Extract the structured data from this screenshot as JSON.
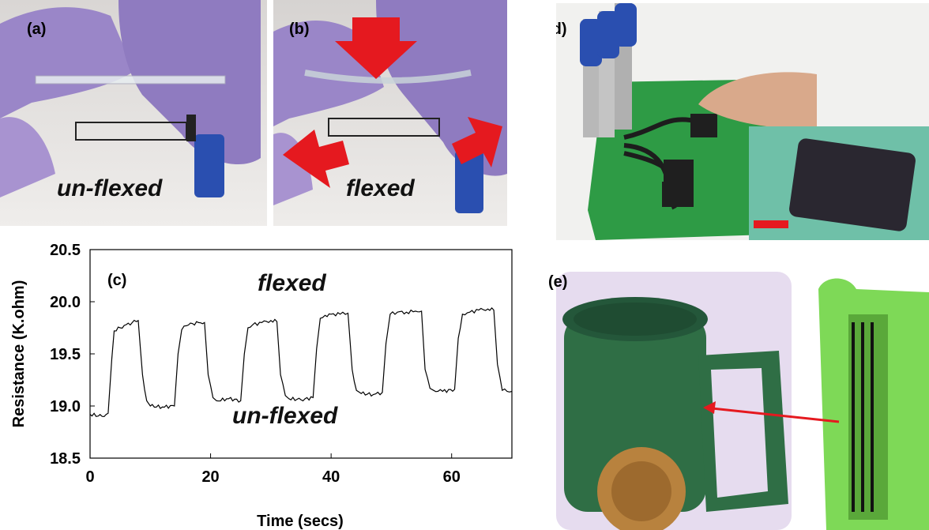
{
  "panels": {
    "a": {
      "label": "(a)",
      "caption": "un-flexed"
    },
    "b": {
      "label": "(b)",
      "caption": "flexed"
    },
    "c": {
      "label": "(c)",
      "annotation_top": "flexed",
      "annotation_bottom": "un-flexed"
    },
    "d": {
      "label": "(d)"
    },
    "e": {
      "label": "(e)"
    }
  },
  "colors": {
    "glove": "#9a86c8",
    "board": "#2e9b45",
    "mug": "#2f6e45",
    "highlight": "#7ed957",
    "arrow": "#e5191f",
    "connector": "#2a4fb0"
  },
  "chart_data": {
    "type": "line",
    "xlabel": "Time (secs)",
    "ylabel": "Resistance (K.ohm)",
    "xlim": [
      0,
      70
    ],
    "ylim": [
      18.5,
      20.5
    ],
    "x_ticks": [
      "0",
      "20",
      "40",
      "60"
    ],
    "y_ticks": [
      "18.5",
      "19.0",
      "19.5",
      "20.0",
      "20.5"
    ],
    "grid": false,
    "series": [
      {
        "x": [
          0,
          2,
          3,
          3.6,
          4,
          5,
          6,
          7,
          8,
          8.7,
          9.4,
          10,
          12,
          14,
          14.6,
          15.2,
          16,
          17,
          18,
          19,
          19.6,
          20.4,
          21,
          23,
          25,
          25.6,
          26.2,
          27,
          28.5,
          30,
          31,
          31.6,
          32.4,
          33,
          35,
          37,
          37.6,
          38.2,
          39,
          40,
          41.5,
          42.8,
          43.5,
          44.2,
          45,
          47,
          48.5,
          49.1,
          49.8,
          51,
          52.5,
          54,
          55,
          55.6,
          56.4,
          57,
          58.5,
          60.5,
          61.1,
          61.8,
          63,
          64.5,
          66,
          67,
          67.6,
          68.4,
          70
        ],
        "y": [
          18.92,
          18.9,
          18.93,
          19.45,
          19.72,
          19.75,
          19.78,
          19.8,
          19.82,
          19.3,
          19.05,
          19.0,
          18.99,
          19.0,
          19.5,
          19.73,
          19.77,
          19.79,
          19.8,
          19.8,
          19.3,
          19.08,
          19.05,
          19.07,
          19.05,
          19.5,
          19.75,
          19.78,
          19.8,
          19.82,
          19.81,
          19.3,
          19.1,
          19.07,
          19.06,
          19.08,
          19.55,
          19.84,
          19.87,
          19.88,
          19.88,
          19.89,
          19.35,
          19.15,
          19.12,
          19.11,
          19.13,
          19.6,
          19.88,
          19.9,
          19.9,
          19.91,
          19.91,
          19.35,
          19.17,
          19.15,
          19.14,
          19.16,
          19.65,
          19.88,
          19.9,
          19.92,
          19.93,
          19.92,
          19.4,
          19.15,
          19.14
        ]
      }
    ]
  }
}
